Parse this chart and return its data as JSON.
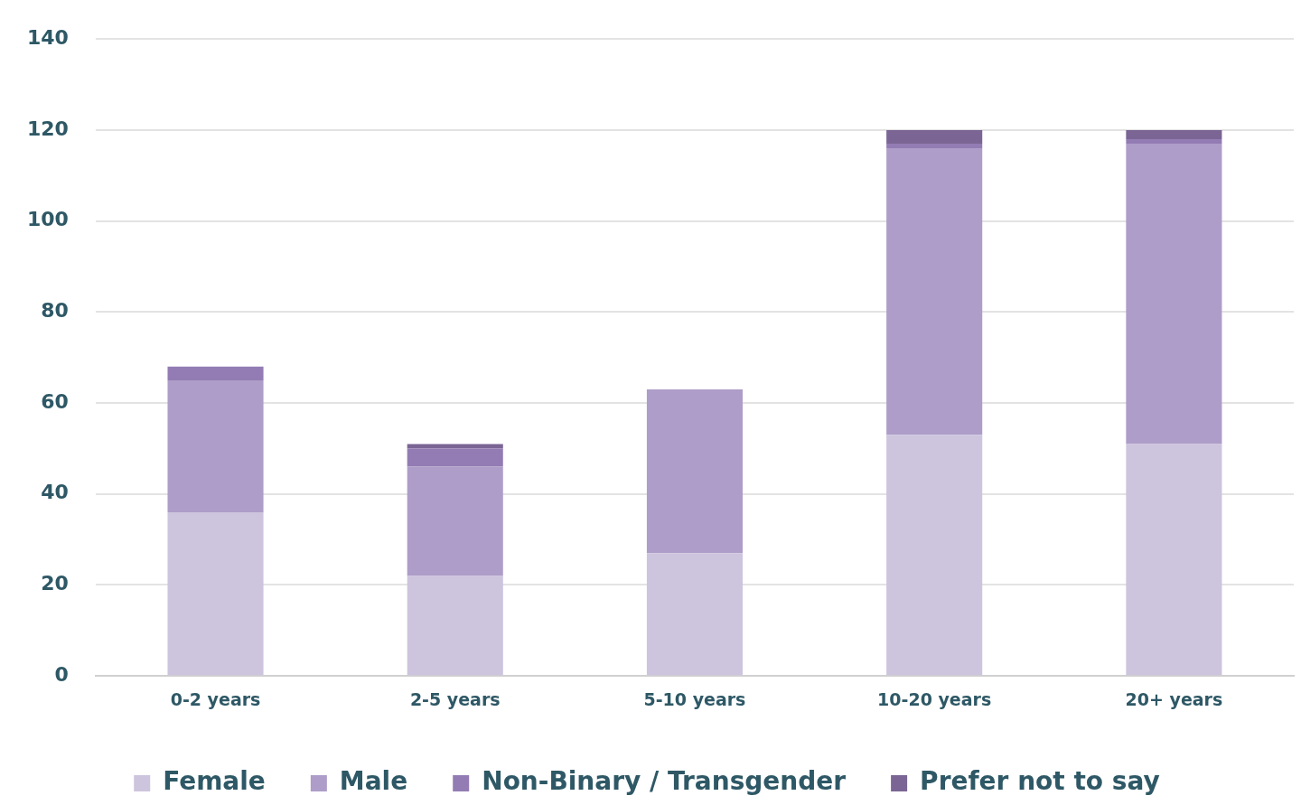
{
  "chart_data": {
    "type": "bar",
    "stacked": true,
    "categories": [
      "0-2 years",
      "2-5 years",
      "5-10 years",
      "10-20 years",
      "20+ years"
    ],
    "series": [
      {
        "name": "Female",
        "color": "#cdc4dd",
        "values": [
          36,
          22,
          27,
          53,
          51
        ]
      },
      {
        "name": "Male",
        "color": "#ad9dc8",
        "values": [
          29,
          24,
          36,
          63,
          66
        ]
      },
      {
        "name": "Non-Binary / Transgender",
        "color": "#937cb3",
        "values": [
          3,
          4,
          0,
          1,
          1
        ]
      },
      {
        "name": "Prefer not to say",
        "color": "#7a6594",
        "values": [
          0,
          1,
          0,
          3,
          2
        ]
      }
    ],
    "ylim": [
      0,
      140
    ],
    "yticks": [
      0,
      20,
      40,
      60,
      80,
      100,
      120,
      140
    ],
    "grid": "y",
    "legend": "bottom"
  }
}
